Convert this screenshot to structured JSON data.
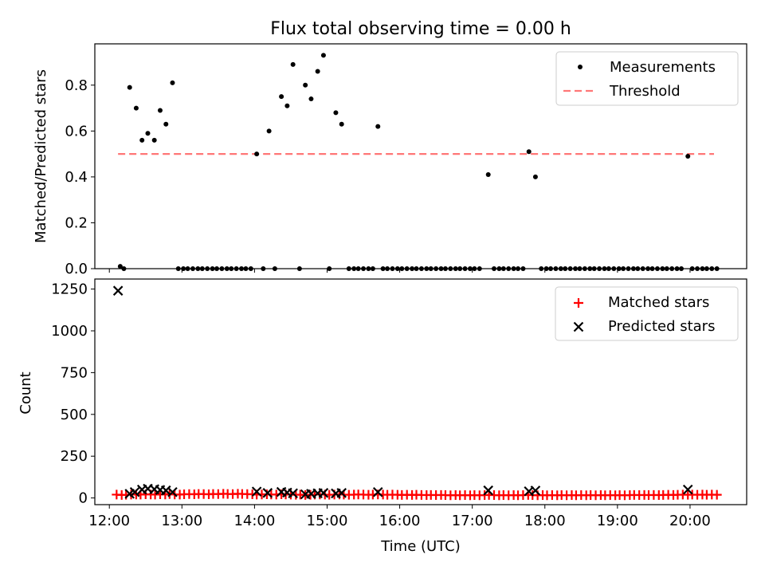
{
  "title": "Flux total observing time = 0.00 h",
  "chart_data": [
    {
      "type": "scatter",
      "ylabel": "Matched/Predicted stars",
      "ylim": [
        0,
        0.98
      ],
      "yticks": [
        0.0,
        0.2,
        0.4,
        0.6,
        0.8
      ],
      "yticklabels": [
        "0.0",
        "0.2",
        "0.4",
        "0.6",
        "0.8"
      ],
      "grid": false,
      "legend": {
        "placement": "top-right",
        "entries": [
          "Measurements",
          "Threshold"
        ]
      },
      "series": [
        {
          "name": "Measurements",
          "color": "#000000",
          "points": [
            [
              12.15,
              0.01
            ],
            [
              12.2,
              0
            ],
            [
              12.28,
              0.79
            ],
            [
              12.37,
              0.7
            ],
            [
              12.45,
              0.56
            ],
            [
              12.53,
              0.59
            ],
            [
              12.62,
              0.56
            ],
            [
              12.7,
              0.69
            ],
            [
              12.78,
              0.63
            ],
            [
              12.87,
              0.81
            ],
            [
              12.95,
              0
            ],
            [
              13.02,
              0
            ],
            [
              13.08,
              0
            ],
            [
              13.15,
              0
            ],
            [
              13.22,
              0
            ],
            [
              13.28,
              0
            ],
            [
              13.35,
              0
            ],
            [
              13.42,
              0
            ],
            [
              13.48,
              0
            ],
            [
              13.55,
              0
            ],
            [
              13.62,
              0
            ],
            [
              13.68,
              0
            ],
            [
              13.75,
              0
            ],
            [
              13.82,
              0
            ],
            [
              13.88,
              0
            ],
            [
              13.95,
              0
            ],
            [
              14.03,
              0.5
            ],
            [
              14.12,
              0
            ],
            [
              14.2,
              0.6
            ],
            [
              14.28,
              0
            ],
            [
              14.37,
              0.75
            ],
            [
              14.45,
              0.71
            ],
            [
              14.53,
              0.89
            ],
            [
              14.62,
              0
            ],
            [
              14.7,
              0.8
            ],
            [
              14.78,
              0.74
            ],
            [
              14.87,
              0.86
            ],
            [
              14.95,
              0.93
            ],
            [
              15.03,
              0
            ],
            [
              15.12,
              0.68
            ],
            [
              15.2,
              0.63
            ],
            [
              15.3,
              0
            ],
            [
              15.37,
              0
            ],
            [
              15.43,
              0
            ],
            [
              15.5,
              0
            ],
            [
              15.57,
              0
            ],
            [
              15.63,
              0
            ],
            [
              15.7,
              0.62
            ],
            [
              15.77,
              0
            ],
            [
              15.83,
              0
            ],
            [
              15.9,
              0
            ],
            [
              15.97,
              0
            ],
            [
              16.03,
              0
            ],
            [
              16.1,
              0
            ],
            [
              16.17,
              0
            ],
            [
              16.23,
              0
            ],
            [
              16.3,
              0
            ],
            [
              16.37,
              0
            ],
            [
              16.43,
              0
            ],
            [
              16.5,
              0
            ],
            [
              16.57,
              0
            ],
            [
              16.63,
              0
            ],
            [
              16.7,
              0
            ],
            [
              16.77,
              0
            ],
            [
              16.83,
              0
            ],
            [
              16.9,
              0
            ],
            [
              16.97,
              0
            ],
            [
              17.03,
              0
            ],
            [
              17.1,
              0
            ],
            [
              17.22,
              0.41
            ],
            [
              17.3,
              0
            ],
            [
              17.37,
              0
            ],
            [
              17.43,
              0
            ],
            [
              17.5,
              0
            ],
            [
              17.57,
              0
            ],
            [
              17.63,
              0
            ],
            [
              17.7,
              0
            ],
            [
              17.78,
              0.51
            ],
            [
              17.87,
              0.4
            ],
            [
              17.95,
              0
            ],
            [
              18.02,
              0
            ],
            [
              18.08,
              0
            ],
            [
              18.15,
              0
            ],
            [
              18.22,
              0
            ],
            [
              18.28,
              0
            ],
            [
              18.35,
              0
            ],
            [
              18.42,
              0
            ],
            [
              18.48,
              0
            ],
            [
              18.55,
              0
            ],
            [
              18.62,
              0
            ],
            [
              18.68,
              0
            ],
            [
              18.75,
              0
            ],
            [
              18.82,
              0
            ],
            [
              18.88,
              0
            ],
            [
              18.95,
              0
            ],
            [
              19.02,
              0
            ],
            [
              19.08,
              0
            ],
            [
              19.15,
              0
            ],
            [
              19.22,
              0
            ],
            [
              19.28,
              0
            ],
            [
              19.35,
              0
            ],
            [
              19.42,
              0
            ],
            [
              19.48,
              0
            ],
            [
              19.55,
              0
            ],
            [
              19.62,
              0
            ],
            [
              19.68,
              0
            ],
            [
              19.75,
              0
            ],
            [
              19.82,
              0
            ],
            [
              19.88,
              0
            ],
            [
              19.97,
              0.49
            ],
            [
              20.03,
              0
            ],
            [
              20.1,
              0
            ],
            [
              20.17,
              0
            ],
            [
              20.23,
              0
            ],
            [
              20.3,
              0
            ],
            [
              20.37,
              0
            ]
          ]
        },
        {
          "name": "Threshold",
          "style": "dashed",
          "color": "#ff7777",
          "points": [
            [
              12.12,
              0.5
            ],
            [
              20.33,
              0.5
            ]
          ]
        }
      ]
    },
    {
      "type": "scatter",
      "xlabel": "Time (UTC)",
      "ylabel": "Count",
      "xlim": [
        11.8,
        20.78
      ],
      "ylim": [
        -40,
        1310
      ],
      "xticks": [
        12,
        13,
        14,
        15,
        16,
        17,
        18,
        19,
        20
      ],
      "xticklabels": [
        "12:00",
        "13:00",
        "14:00",
        "15:00",
        "16:00",
        "17:00",
        "18:00",
        "19:00",
        "20:00"
      ],
      "yticks": [
        0,
        250,
        500,
        750,
        1000,
        1250
      ],
      "yticklabels": [
        "0",
        "250",
        "500",
        "750",
        "1000",
        "1250"
      ],
      "grid": false,
      "legend": {
        "placement": "top-right",
        "entries": [
          "Matched stars",
          "Predicted stars"
        ]
      },
      "series": [
        {
          "name": "Matched stars",
          "marker": "+",
          "color": "#ff0000",
          "points": [
            [
              12.1,
              20
            ],
            [
              12.17,
              18
            ],
            [
              12.23,
              19
            ],
            [
              12.3,
              20
            ],
            [
              12.37,
              21
            ],
            [
              12.43,
              20
            ],
            [
              12.5,
              22
            ],
            [
              12.57,
              21
            ],
            [
              12.63,
              20
            ],
            [
              12.7,
              22
            ],
            [
              12.77,
              21
            ],
            [
              12.83,
              23
            ],
            [
              12.9,
              21
            ],
            [
              12.97,
              20
            ],
            [
              13.03,
              22
            ],
            [
              13.1,
              23
            ],
            [
              13.17,
              22
            ],
            [
              13.23,
              24
            ],
            [
              13.3,
              23
            ],
            [
              13.37,
              22
            ],
            [
              13.43,
              24
            ],
            [
              13.5,
              23
            ],
            [
              13.57,
              25
            ],
            [
              13.63,
              24
            ],
            [
              13.7,
              23
            ],
            [
              13.77,
              25
            ],
            [
              13.83,
              24
            ],
            [
              13.9,
              23
            ],
            [
              13.97,
              22
            ],
            [
              14.03,
              20
            ],
            [
              14.1,
              21
            ],
            [
              14.17,
              22
            ],
            [
              14.23,
              21
            ],
            [
              14.3,
              20
            ],
            [
              14.37,
              22
            ],
            [
              14.43,
              21
            ],
            [
              14.5,
              20
            ],
            [
              14.57,
              19
            ],
            [
              14.63,
              20
            ],
            [
              14.7,
              18
            ],
            [
              14.77,
              19
            ],
            [
              14.83,
              20
            ],
            [
              14.9,
              21
            ],
            [
              14.97,
              20
            ],
            [
              15.03,
              19
            ],
            [
              15.1,
              20
            ],
            [
              15.17,
              21
            ],
            [
              15.23,
              20
            ],
            [
              15.3,
              19
            ],
            [
              15.37,
              20
            ],
            [
              15.43,
              21
            ],
            [
              15.5,
              20
            ],
            [
              15.57,
              19
            ],
            [
              15.63,
              20
            ],
            [
              15.7,
              21
            ],
            [
              15.77,
              20
            ],
            [
              15.83,
              19
            ],
            [
              15.9,
              20
            ],
            [
              15.97,
              19
            ],
            [
              16.03,
              18
            ],
            [
              16.1,
              19
            ],
            [
              16.17,
              18
            ],
            [
              16.23,
              19
            ],
            [
              16.3,
              18
            ],
            [
              16.37,
              17
            ],
            [
              16.43,
              18
            ],
            [
              16.5,
              17
            ],
            [
              16.57,
              18
            ],
            [
              16.63,
              17
            ],
            [
              16.7,
              16
            ],
            [
              16.77,
              17
            ],
            [
              16.83,
              16
            ],
            [
              16.9,
              17
            ],
            [
              16.97,
              16
            ],
            [
              17.03,
              17
            ],
            [
              17.1,
              16
            ],
            [
              17.17,
              17
            ],
            [
              17.23,
              18
            ],
            [
              17.3,
              17
            ],
            [
              17.37,
              16
            ],
            [
              17.43,
              17
            ],
            [
              17.5,
              16
            ],
            [
              17.57,
              17
            ],
            [
              17.63,
              16
            ],
            [
              17.7,
              17
            ],
            [
              17.77,
              18
            ],
            [
              17.83,
              17
            ],
            [
              17.9,
              16
            ],
            [
              17.97,
              17
            ],
            [
              18.03,
              16
            ],
            [
              18.1,
              17
            ],
            [
              18.17,
              16
            ],
            [
              18.23,
              17
            ],
            [
              18.3,
              16
            ],
            [
              18.37,
              17
            ],
            [
              18.43,
              16
            ],
            [
              18.5,
              17
            ],
            [
              18.57,
              16
            ],
            [
              18.63,
              17
            ],
            [
              18.7,
              16
            ],
            [
              18.77,
              17
            ],
            [
              18.83,
              16
            ],
            [
              18.9,
              17
            ],
            [
              18.97,
              16
            ],
            [
              19.03,
              17
            ],
            [
              19.1,
              16
            ],
            [
              19.17,
              17
            ],
            [
              19.23,
              18
            ],
            [
              19.3,
              17
            ],
            [
              19.37,
              18
            ],
            [
              19.43,
              17
            ],
            [
              19.5,
              18
            ],
            [
              19.57,
              17
            ],
            [
              19.63,
              18
            ],
            [
              19.7,
              19
            ],
            [
              19.77,
              18
            ],
            [
              19.83,
              19
            ],
            [
              19.9,
              20
            ],
            [
              19.97,
              19
            ],
            [
              20.03,
              20
            ],
            [
              20.1,
              19
            ],
            [
              20.17,
              20
            ],
            [
              20.23,
              19
            ],
            [
              20.3,
              20
            ],
            [
              20.37,
              19
            ]
          ]
        },
        {
          "name": "Predicted stars",
          "marker": "x",
          "color": "#000000",
          "points": [
            [
              12.12,
              1240
            ],
            [
              12.28,
              25
            ],
            [
              12.35,
              35
            ],
            [
              12.45,
              50
            ],
            [
              12.53,
              55
            ],
            [
              12.62,
              52
            ],
            [
              12.7,
              48
            ],
            [
              12.78,
              45
            ],
            [
              12.87,
              35
            ],
            [
              14.03,
              38
            ],
            [
              14.18,
              30
            ],
            [
              14.37,
              36
            ],
            [
              14.45,
              32
            ],
            [
              14.53,
              28
            ],
            [
              14.7,
              22
            ],
            [
              14.78,
              25
            ],
            [
              14.87,
              28
            ],
            [
              14.95,
              30
            ],
            [
              15.12,
              27
            ],
            [
              15.2,
              30
            ],
            [
              15.7,
              35
            ],
            [
              17.22,
              45
            ],
            [
              17.78,
              40
            ],
            [
              17.87,
              44
            ],
            [
              19.97,
              50
            ]
          ]
        }
      ]
    }
  ]
}
